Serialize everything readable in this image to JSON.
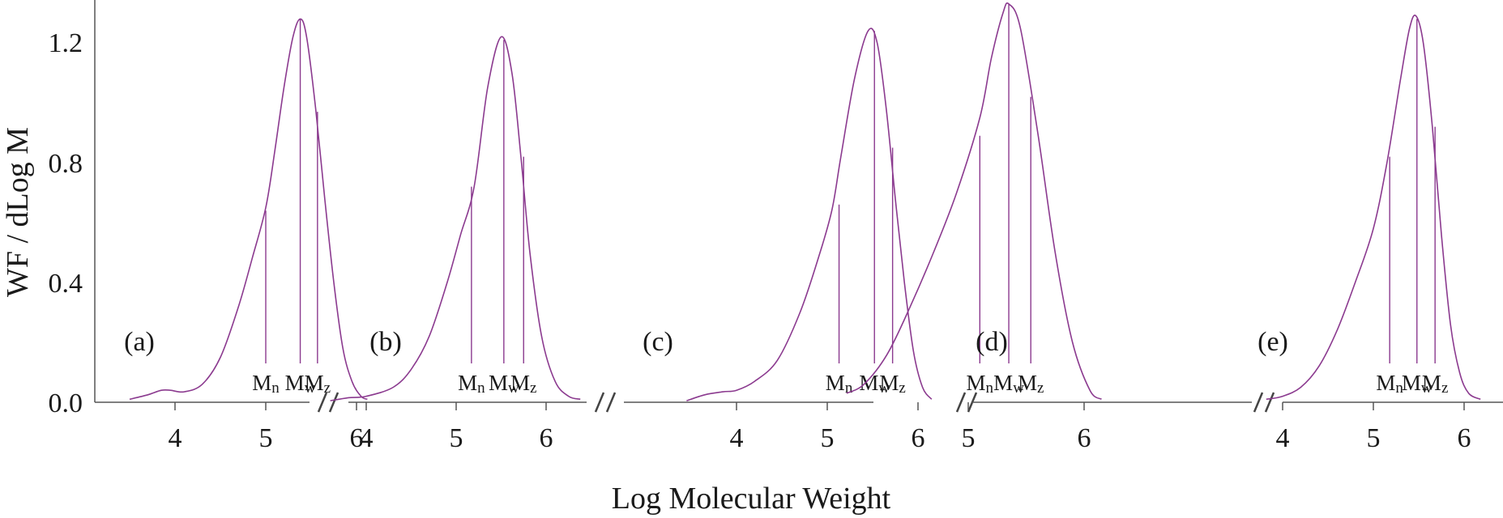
{
  "colors": {
    "curve": "#8B3A8F",
    "axis": "#555555",
    "text": "#1a1a1a"
  },
  "xlabel": "Log Molecular Weight",
  "ylabel": "WF / dLog M",
  "y_ticks": [
    "0.0",
    "0.4",
    "0.8",
    "1.2"
  ],
  "chart_data": [
    {
      "type": "line",
      "label": "(a)",
      "xlim": [
        3.4,
        6.15
      ],
      "ylim": [
        0,
        1.3
      ],
      "x_ticks": [
        4,
        5,
        6
      ],
      "x": [
        3.5,
        3.7,
        3.85,
        3.95,
        4.1,
        4.3,
        4.5,
        4.7,
        4.85,
        5.0,
        5.1,
        5.2,
        5.3,
        5.38,
        5.45,
        5.55,
        5.65,
        5.75,
        5.85,
        5.95,
        6.05,
        6.12
      ],
      "y": [
        0.01,
        0.025,
        0.04,
        0.04,
        0.035,
        0.06,
        0.15,
        0.32,
        0.48,
        0.65,
        0.84,
        1.05,
        1.22,
        1.28,
        1.22,
        0.98,
        0.68,
        0.4,
        0.18,
        0.07,
        0.02,
        0.01
      ],
      "markers": [
        {
          "name": "Mn",
          "x": 5.0,
          "y": 0.64
        },
        {
          "name": "Mw",
          "x": 5.38,
          "y": 1.28
        },
        {
          "name": "Mz",
          "x": 5.57,
          "y": 0.97
        }
      ]
    },
    {
      "type": "line",
      "label": "(b)",
      "xlim": [
        3.4,
        6.4
      ],
      "ylim": [
        0,
        1.3
      ],
      "x_ticks": [
        4,
        5,
        6
      ],
      "x": [
        3.6,
        3.8,
        4.0,
        4.3,
        4.5,
        4.7,
        4.9,
        5.05,
        5.2,
        5.35,
        5.5,
        5.62,
        5.72,
        5.82,
        5.95,
        6.1,
        6.25,
        6.38
      ],
      "y": [
        0.005,
        0.015,
        0.02,
        0.05,
        0.11,
        0.22,
        0.4,
        0.56,
        0.72,
        1.05,
        1.22,
        1.1,
        0.82,
        0.5,
        0.22,
        0.07,
        0.02,
        0.01
      ],
      "markers": [
        {
          "name": "Mn",
          "x": 5.17,
          "y": 0.72
        },
        {
          "name": "Mw",
          "x": 5.53,
          "y": 1.21
        },
        {
          "name": "Mz",
          "x": 5.75,
          "y": 0.82
        }
      ]
    },
    {
      "type": "line",
      "label": "(c)",
      "xlim": [
        3.4,
        6.15
      ],
      "ylim": [
        0,
        1.3
      ],
      "x_ticks": [
        4,
        5,
        6
      ],
      "x": [
        3.45,
        3.65,
        3.85,
        4.0,
        4.2,
        4.45,
        4.7,
        4.9,
        5.05,
        5.15,
        5.3,
        5.45,
        5.55,
        5.65,
        5.75,
        5.85,
        5.95,
        6.05,
        6.15
      ],
      "y": [
        0.005,
        0.025,
        0.035,
        0.04,
        0.07,
        0.14,
        0.3,
        0.48,
        0.64,
        0.82,
        1.08,
        1.24,
        1.2,
        0.98,
        0.68,
        0.4,
        0.17,
        0.05,
        0.01
      ],
      "markers": [
        {
          "name": "Mn",
          "x": 5.13,
          "y": 0.66
        },
        {
          "name": "Mw",
          "x": 5.52,
          "y": 1.24
        },
        {
          "name": "Mz",
          "x": 5.72,
          "y": 0.85
        }
      ]
    },
    {
      "type": "line",
      "label": "(d)",
      "xlim": [
        3.9,
        6.2
      ],
      "ylim": [
        0,
        1.3
      ],
      "x_ticks": [
        5,
        6
      ],
      "x": [
        3.95,
        4.1,
        4.3,
        4.5,
        4.7,
        4.9,
        5.1,
        5.2,
        5.3,
        5.35,
        5.45,
        5.6,
        5.75,
        5.9,
        6.05,
        6.15
      ],
      "y": [
        0.03,
        0.06,
        0.16,
        0.32,
        0.5,
        0.7,
        0.95,
        1.15,
        1.3,
        1.33,
        1.25,
        0.9,
        0.5,
        0.2,
        0.04,
        0.01
      ],
      "markers": [
        {
          "name": "Mn",
          "x": 5.1,
          "y": 0.89
        },
        {
          "name": "Mw",
          "x": 5.35,
          "y": 1.33
        },
        {
          "name": "Mz",
          "x": 5.54,
          "y": 1.02
        }
      ]
    },
    {
      "type": "line",
      "label": "(e)",
      "xlim": [
        3.7,
        6.3
      ],
      "ylim": [
        0,
        1.3
      ],
      "x_ticks": [
        4,
        5,
        6
      ],
      "x": [
        3.82,
        4.0,
        4.2,
        4.4,
        4.6,
        4.8,
        5.0,
        5.15,
        5.3,
        5.4,
        5.47,
        5.55,
        5.65,
        5.75,
        5.85,
        5.95,
        6.05,
        6.18
      ],
      "y": [
        0.01,
        0.02,
        0.05,
        0.12,
        0.24,
        0.4,
        0.58,
        0.8,
        1.08,
        1.25,
        1.29,
        1.2,
        0.92,
        0.56,
        0.26,
        0.1,
        0.03,
        0.01
      ],
      "markers": [
        {
          "name": "Mn",
          "x": 5.18,
          "y": 0.82
        },
        {
          "name": "Mw",
          "x": 5.48,
          "y": 1.28
        },
        {
          "name": "Mz",
          "x": 5.68,
          "y": 0.92
        }
      ]
    }
  ]
}
